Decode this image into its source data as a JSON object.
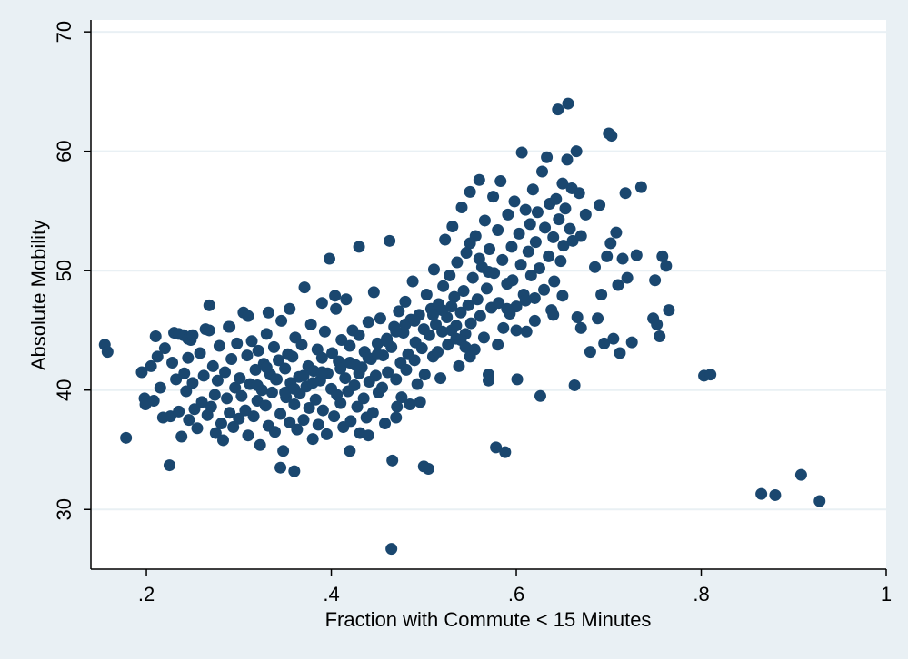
{
  "chart_data": {
    "type": "scatter",
    "title": "",
    "xlabel": "Fraction with Commute < 15 Minutes",
    "ylabel": "Absolute Mobility",
    "xlim": [
      0.14,
      1.0
    ],
    "ylim": [
      25,
      71
    ],
    "x_ticks": [
      0.2,
      0.4,
      0.6,
      0.8,
      1.0
    ],
    "x_tick_labels": [
      ".2",
      ".4",
      ".6",
      ".8",
      "1"
    ],
    "y_ticks": [
      30,
      40,
      50,
      60,
      70
    ],
    "y_tick_labels": [
      "30",
      "40",
      "50",
      "60",
      "70"
    ],
    "grid": "horizontal",
    "legend": "none",
    "colors": {
      "marker": "#1a476f",
      "plot_background": "#ffffff",
      "figure_background": "#e9f0f4",
      "grid": "#e9f0f4"
    },
    "points": [
      [
        0.155,
        43.8
      ],
      [
        0.158,
        43.2
      ],
      [
        0.178,
        36.0
      ],
      [
        0.195,
        41.5
      ],
      [
        0.198,
        39.3
      ],
      [
        0.199,
        38.8
      ],
      [
        0.205,
        42.0
      ],
      [
        0.208,
        39.1
      ],
      [
        0.21,
        44.5
      ],
      [
        0.212,
        42.8
      ],
      [
        0.215,
        40.2
      ],
      [
        0.218,
        37.7
      ],
      [
        0.22,
        43.5
      ],
      [
        0.225,
        33.7
      ],
      [
        0.226,
        37.8
      ],
      [
        0.228,
        42.3
      ],
      [
        0.23,
        44.8
      ],
      [
        0.232,
        40.9
      ],
      [
        0.235,
        38.2
      ],
      [
        0.238,
        36.1
      ],
      [
        0.24,
        44.6
      ],
      [
        0.241,
        41.4
      ],
      [
        0.243,
        39.9
      ],
      [
        0.245,
        42.7
      ],
      [
        0.246,
        37.5
      ],
      [
        0.248,
        44.2
      ],
      [
        0.25,
        40.6
      ],
      [
        0.252,
        38.4
      ],
      [
        0.255,
        36.8
      ],
      [
        0.258,
        43.1
      ],
      [
        0.26,
        39.0
      ],
      [
        0.262,
        41.2
      ],
      [
        0.264,
        45.1
      ],
      [
        0.266,
        37.9
      ],
      [
        0.268,
        47.1
      ],
      [
        0.27,
        38.6
      ],
      [
        0.272,
        42.0
      ],
      [
        0.274,
        39.6
      ],
      [
        0.275,
        36.4
      ],
      [
        0.277,
        40.8
      ],
      [
        0.279,
        43.7
      ],
      [
        0.281,
        37.2
      ],
      [
        0.283,
        35.8
      ],
      [
        0.285,
        41.5
      ],
      [
        0.287,
        39.3
      ],
      [
        0.289,
        45.3
      ],
      [
        0.29,
        38.1
      ],
      [
        0.292,
        42.6
      ],
      [
        0.294,
        36.9
      ],
      [
        0.296,
        40.2
      ],
      [
        0.298,
        43.9
      ],
      [
        0.3,
        37.6
      ],
      [
        0.301,
        41.0
      ],
      [
        0.303,
        39.5
      ],
      [
        0.305,
        46.5
      ],
      [
        0.307,
        38.3
      ],
      [
        0.309,
        42.9
      ],
      [
        0.31,
        36.2
      ],
      [
        0.312,
        40.5
      ],
      [
        0.314,
        44.1
      ],
      [
        0.316,
        37.8
      ],
      [
        0.318,
        41.7
      ],
      [
        0.32,
        39.1
      ],
      [
        0.321,
        43.3
      ],
      [
        0.323,
        35.4
      ],
      [
        0.325,
        40.0
      ],
      [
        0.327,
        42.2
      ],
      [
        0.329,
        38.7
      ],
      [
        0.33,
        44.7
      ],
      [
        0.332,
        37.0
      ],
      [
        0.334,
        41.3
      ],
      [
        0.336,
        39.8
      ],
      [
        0.338,
        43.6
      ],
      [
        0.339,
        36.5
      ],
      [
        0.341,
        40.9
      ],
      [
        0.343,
        42.5
      ],
      [
        0.345,
        38.0
      ],
      [
        0.346,
        45.8
      ],
      [
        0.348,
        34.9
      ],
      [
        0.35,
        41.8
      ],
      [
        0.351,
        39.4
      ],
      [
        0.353,
        43.0
      ],
      [
        0.355,
        37.3
      ],
      [
        0.356,
        40.6
      ],
      [
        0.358,
        42.8
      ],
      [
        0.36,
        38.8
      ],
      [
        0.361,
        44.4
      ],
      [
        0.363,
        36.7
      ],
      [
        0.365,
        41.1
      ],
      [
        0.366,
        39.7
      ],
      [
        0.368,
        43.8
      ],
      [
        0.37,
        37.5
      ],
      [
        0.371,
        48.6
      ],
      [
        0.373,
        40.3
      ],
      [
        0.375,
        42.0
      ],
      [
        0.376,
        38.5
      ],
      [
        0.378,
        45.5
      ],
      [
        0.38,
        35.9
      ],
      [
        0.381,
        41.6
      ],
      [
        0.383,
        39.2
      ],
      [
        0.385,
        43.4
      ],
      [
        0.386,
        37.1
      ],
      [
        0.388,
        40.8
      ],
      [
        0.39,
        42.7
      ],
      [
        0.391,
        38.3
      ],
      [
        0.393,
        44.9
      ],
      [
        0.395,
        36.3
      ],
      [
        0.396,
        41.4
      ],
      [
        0.398,
        51.0
      ],
      [
        0.4,
        40.1
      ],
      [
        0.401,
        43.1
      ],
      [
        0.403,
        37.8
      ],
      [
        0.405,
        46.8
      ],
      [
        0.406,
        39.6
      ],
      [
        0.408,
        42.4
      ],
      [
        0.41,
        38.9
      ],
      [
        0.411,
        44.2
      ],
      [
        0.413,
        36.9
      ],
      [
        0.415,
        41.0
      ],
      [
        0.416,
        47.6
      ],
      [
        0.418,
        39.9
      ],
      [
        0.42,
        43.7
      ],
      [
        0.421,
        37.4
      ],
      [
        0.423,
        45.0
      ],
      [
        0.425,
        40.4
      ],
      [
        0.426,
        42.1
      ],
      [
        0.428,
        38.6
      ],
      [
        0.43,
        44.6
      ],
      [
        0.431,
        36.4
      ],
      [
        0.433,
        41.9
      ],
      [
        0.435,
        39.3
      ],
      [
        0.436,
        43.2
      ],
      [
        0.438,
        37.7
      ],
      [
        0.44,
        45.7
      ],
      [
        0.441,
        40.7
      ],
      [
        0.443,
        42.6
      ],
      [
        0.445,
        38.1
      ],
      [
        0.446,
        48.2
      ],
      [
        0.448,
        41.2
      ],
      [
        0.45,
        43.9
      ],
      [
        0.451,
        39.8
      ],
      [
        0.453,
        46.0
      ],
      [
        0.455,
        40.2
      ],
      [
        0.456,
        42.9
      ],
      [
        0.458,
        37.2
      ],
      [
        0.46,
        44.3
      ],
      [
        0.461,
        41.5
      ],
      [
        0.463,
        52.5
      ],
      [
        0.465,
        43.6
      ],
      [
        0.466,
        34.1
      ],
      [
        0.468,
        45.3
      ],
      [
        0.47,
        40.9
      ],
      [
        0.471,
        38.6
      ],
      [
        0.473,
        46.6
      ],
      [
        0.475,
        42.3
      ],
      [
        0.476,
        39.4
      ],
      [
        0.478,
        44.8
      ],
      [
        0.48,
        47.4
      ],
      [
        0.481,
        41.7
      ],
      [
        0.483,
        43.0
      ],
      [
        0.485,
        38.8
      ],
      [
        0.486,
        45.9
      ],
      [
        0.488,
        49.1
      ],
      [
        0.49,
        42.5
      ],
      [
        0.491,
        44.0
      ],
      [
        0.493,
        40.5
      ],
      [
        0.495,
        46.3
      ],
      [
        0.496,
        39.0
      ],
      [
        0.498,
        43.5
      ],
      [
        0.5,
        45.1
      ],
      [
        0.501,
        41.3
      ],
      [
        0.503,
        48.0
      ],
      [
        0.505,
        33.4
      ],
      [
        0.506,
        44.6
      ],
      [
        0.508,
        46.8
      ],
      [
        0.51,
        42.8
      ],
      [
        0.511,
        50.1
      ],
      [
        0.513,
        45.5
      ],
      [
        0.515,
        43.2
      ],
      [
        0.516,
        47.2
      ],
      [
        0.518,
        41.0
      ],
      [
        0.52,
        44.9
      ],
      [
        0.521,
        48.7
      ],
      [
        0.523,
        52.6
      ],
      [
        0.525,
        46.1
      ],
      [
        0.526,
        43.8
      ],
      [
        0.528,
        49.6
      ],
      [
        0.53,
        45.0
      ],
      [
        0.531,
        53.7
      ],
      [
        0.533,
        47.8
      ],
      [
        0.535,
        44.3
      ],
      [
        0.536,
        50.7
      ],
      [
        0.538,
        42.0
      ],
      [
        0.54,
        46.5
      ],
      [
        0.541,
        55.3
      ],
      [
        0.543,
        48.3
      ],
      [
        0.545,
        44.7
      ],
      [
        0.546,
        51.5
      ],
      [
        0.548,
        47.1
      ],
      [
        0.55,
        56.6
      ],
      [
        0.551,
        45.6
      ],
      [
        0.553,
        49.4
      ],
      [
        0.555,
        43.4
      ],
      [
        0.556,
        52.9
      ],
      [
        0.558,
        47.6
      ],
      [
        0.56,
        57.6
      ],
      [
        0.561,
        46.2
      ],
      [
        0.563,
        50.3
      ],
      [
        0.565,
        44.4
      ],
      [
        0.566,
        54.2
      ],
      [
        0.568,
        48.5
      ],
      [
        0.57,
        41.3
      ],
      [
        0.571,
        51.8
      ],
      [
        0.573,
        46.9
      ],
      [
        0.575,
        56.2
      ],
      [
        0.576,
        49.8
      ],
      [
        0.578,
        35.2
      ],
      [
        0.58,
        53.4
      ],
      [
        0.581,
        47.3
      ],
      [
        0.583,
        57.5
      ],
      [
        0.585,
        50.9
      ],
      [
        0.586,
        45.2
      ],
      [
        0.588,
        34.8
      ],
      [
        0.59,
        48.9
      ],
      [
        0.591,
        54.7
      ],
      [
        0.593,
        46.4
      ],
      [
        0.595,
        52.0
      ],
      [
        0.596,
        49.2
      ],
      [
        0.598,
        55.8
      ],
      [
        0.6,
        47.0
      ],
      [
        0.601,
        40.9
      ],
      [
        0.603,
        53.1
      ],
      [
        0.605,
        50.5
      ],
      [
        0.606,
        59.9
      ],
      [
        0.608,
        48.0
      ],
      [
        0.61,
        55.1
      ],
      [
        0.611,
        44.9
      ],
      [
        0.613,
        51.6
      ],
      [
        0.615,
        53.9
      ],
      [
        0.616,
        49.6
      ],
      [
        0.618,
        56.8
      ],
      [
        0.62,
        47.7
      ],
      [
        0.621,
        52.4
      ],
      [
        0.623,
        54.9
      ],
      [
        0.625,
        50.2
      ],
      [
        0.626,
        39.5
      ],
      [
        0.628,
        58.3
      ],
      [
        0.63,
        48.4
      ],
      [
        0.631,
        53.6
      ],
      [
        0.633,
        59.5
      ],
      [
        0.635,
        51.2
      ],
      [
        0.636,
        55.6
      ],
      [
        0.638,
        46.7
      ],
      [
        0.64,
        52.8
      ],
      [
        0.641,
        49.1
      ],
      [
        0.643,
        56.0
      ],
      [
        0.645,
        63.5
      ],
      [
        0.646,
        54.3
      ],
      [
        0.648,
        50.8
      ],
      [
        0.65,
        57.3
      ],
      [
        0.651,
        52.1
      ],
      [
        0.653,
        55.2
      ],
      [
        0.655,
        59.3
      ],
      [
        0.656,
        64.0
      ],
      [
        0.658,
        53.5
      ],
      [
        0.66,
        56.9
      ],
      [
        0.661,
        52.5
      ],
      [
        0.663,
        40.4
      ],
      [
        0.665,
        60.0
      ],
      [
        0.666,
        46.1
      ],
      [
        0.668,
        56.5
      ],
      [
        0.67,
        52.9
      ],
      [
        0.675,
        54.7
      ],
      [
        0.68,
        43.2
      ],
      [
        0.685,
        50.3
      ],
      [
        0.688,
        46.0
      ],
      [
        0.69,
        55.5
      ],
      [
        0.692,
        48.0
      ],
      [
        0.695,
        43.9
      ],
      [
        0.698,
        51.2
      ],
      [
        0.7,
        61.5
      ],
      [
        0.702,
        52.3
      ],
      [
        0.703,
        61.3
      ],
      [
        0.705,
        44.3
      ],
      [
        0.708,
        53.2
      ],
      [
        0.71,
        48.8
      ],
      [
        0.712,
        43.1
      ],
      [
        0.715,
        51.0
      ],
      [
        0.718,
        56.5
      ],
      [
        0.72,
        49.4
      ],
      [
        0.725,
        44.0
      ],
      [
        0.73,
        51.3
      ],
      [
        0.735,
        57.0
      ],
      [
        0.748,
        46.0
      ],
      [
        0.75,
        49.2
      ],
      [
        0.752,
        45.5
      ],
      [
        0.755,
        44.5
      ],
      [
        0.758,
        51.2
      ],
      [
        0.762,
        50.4
      ],
      [
        0.765,
        46.7
      ],
      [
        0.803,
        41.2
      ],
      [
        0.81,
        41.3
      ],
      [
        0.865,
        31.3
      ],
      [
        0.88,
        31.2
      ],
      [
        0.908,
        32.9
      ],
      [
        0.928,
        30.7
      ],
      [
        0.465,
        26.7
      ],
      [
        0.345,
        33.5
      ],
      [
        0.36,
        33.2
      ],
      [
        0.42,
        34.9
      ],
      [
        0.5,
        33.6
      ],
      [
        0.57,
        40.8
      ],
      [
        0.44,
        36.2
      ],
      [
        0.47,
        37.7
      ],
      [
        0.31,
        46.2
      ],
      [
        0.29,
        45.3
      ],
      [
        0.268,
        45.0
      ],
      [
        0.332,
        46.5
      ],
      [
        0.355,
        46.8
      ],
      [
        0.39,
        47.3
      ],
      [
        0.43,
        52.0
      ],
      [
        0.404,
        47.9
      ],
      [
        0.235,
        44.7
      ],
      [
        0.245,
        44.3
      ],
      [
        0.25,
        44.6
      ],
      [
        0.32,
        40.4
      ],
      [
        0.33,
        41.9
      ],
      [
        0.34,
        40.9
      ],
      [
        0.35,
        39.8
      ],
      [
        0.36,
        40.1
      ],
      [
        0.37,
        41.2
      ],
      [
        0.38,
        40.6
      ],
      [
        0.39,
        41.5
      ],
      [
        0.41,
        41.8
      ],
      [
        0.42,
        42.3
      ],
      [
        0.43,
        41.4
      ],
      [
        0.44,
        42.7
      ],
      [
        0.45,
        43.0
      ],
      [
        0.46,
        44.1
      ],
      [
        0.47,
        44.9
      ],
      [
        0.48,
        45.5
      ],
      [
        0.49,
        45.8
      ],
      [
        0.51,
        46.3
      ],
      [
        0.52,
        46.7
      ],
      [
        0.53,
        47.0
      ],
      [
        0.535,
        45.4
      ],
      [
        0.54,
        44.2
      ],
      [
        0.545,
        43.6
      ],
      [
        0.55,
        42.8
      ],
      [
        0.61,
        47.5
      ],
      [
        0.62,
        45.8
      ],
      [
        0.64,
        46.3
      ],
      [
        0.65,
        47.9
      ],
      [
        0.67,
        45.2
      ],
      [
        0.6,
        45.0
      ],
      [
        0.58,
        43.8
      ],
      [
        0.59,
        46.8
      ],
      [
        0.57,
        49.9
      ],
      [
        0.56,
        51.0
      ],
      [
        0.55,
        52.3
      ]
    ]
  }
}
